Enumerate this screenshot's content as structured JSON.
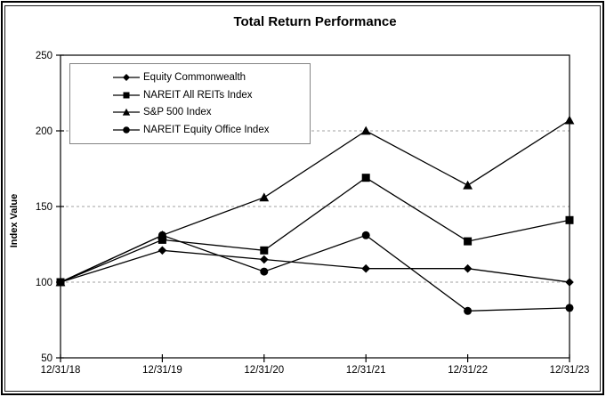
{
  "chart_data": {
    "type": "line",
    "title": "Total Return Performance",
    "xlabel": "",
    "ylabel": "Index Value",
    "categories": [
      "12/31/18",
      "12/31/19",
      "12/31/20",
      "12/31/21",
      "12/31/22",
      "12/31/23"
    ],
    "series": [
      {
        "name": "Equity Commonwealth",
        "marker": "diamond",
        "values": [
          100,
          121,
          115,
          109,
          109,
          100
        ]
      },
      {
        "name": "NAREIT All REITs Index",
        "marker": "square",
        "values": [
          100,
          128,
          121,
          169,
          127,
          141
        ]
      },
      {
        "name": "S&P 500 Index",
        "marker": "triangle",
        "values": [
          100,
          131,
          156,
          200,
          164,
          207
        ]
      },
      {
        "name": "NAREIT Equity Office Index",
        "marker": "circle",
        "values": [
          100,
          131,
          107,
          131,
          81,
          83
        ]
      }
    ],
    "ylim": [
      50,
      250
    ],
    "yticks": [
      50,
      100,
      150,
      200,
      250
    ],
    "gridlines": [
      100,
      150,
      200
    ],
    "grid": "dashed-horizontal",
    "legend_position": "top-left-inside",
    "line_color": "#000000",
    "grid_color": "#a0a0a0",
    "legend_border_color": "#848484"
  }
}
